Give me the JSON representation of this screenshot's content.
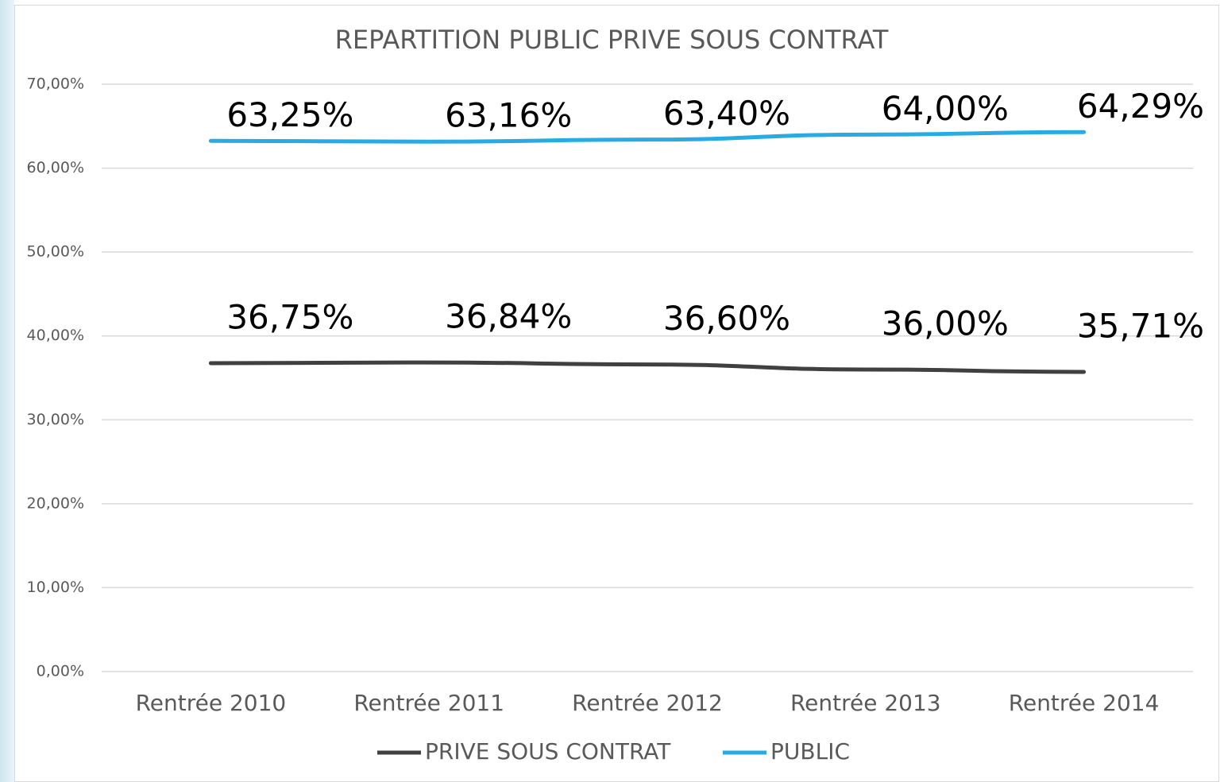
{
  "chart_data": {
    "type": "line",
    "title": "REPARTITION PUBLIC PRIVE SOUS CONTRAT",
    "categories": [
      "Rentrée 2010",
      "Rentrée 2011",
      "Rentrée 2012",
      "Rentrée 2013",
      "Rentrée 2014"
    ],
    "series": [
      {
        "name": "PRIVE SOUS CONTRAT",
        "color": "#404040",
        "values": [
          36.75,
          36.84,
          36.6,
          36.0,
          35.71
        ],
        "value_labels": [
          "36,75%",
          "36,84%",
          "36,60%",
          "36,00%",
          "35,71%"
        ]
      },
      {
        "name": "PUBLIC",
        "color": "#29abe2",
        "values": [
          63.25,
          63.16,
          63.4,
          64.0,
          64.29
        ],
        "value_labels": [
          "63,25%",
          "63,16%",
          "63,40%",
          "64,00%",
          "64,29%"
        ]
      }
    ],
    "ylim": [
      0,
      70
    ],
    "yticks": [
      {
        "value": 0,
        "label": "0,00%"
      },
      {
        "value": 10,
        "label": "10,00%"
      },
      {
        "value": 20,
        "label": "20,00%"
      },
      {
        "value": 30,
        "label": "30,00%"
      },
      {
        "value": 40,
        "label": "40,00%"
      },
      {
        "value": 50,
        "label": "50,00%"
      },
      {
        "value": 60,
        "label": "60,00%"
      },
      {
        "value": 70,
        "label": "70,00%"
      }
    ],
    "grid": true,
    "legend": "bottom"
  }
}
